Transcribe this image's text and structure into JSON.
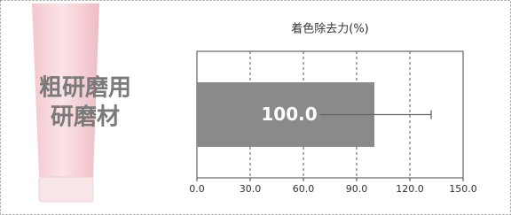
{
  "chart_data": {
    "type": "hbar",
    "title": "着色除去力(%)",
    "product_label": [
      "粗研磨用",
      "研磨材"
    ],
    "values": [
      100
    ],
    "value_labels": [
      "100.0"
    ],
    "errors": [
      32
    ],
    "color": "#8a8a8a",
    "xlim": [
      0,
      150
    ],
    "xticks": [
      {
        "value": 0,
        "label": "0.0"
      },
      {
        "value": 30,
        "label": "30.0"
      },
      {
        "value": 60,
        "label": "60.0"
      },
      {
        "value": 90,
        "label": "90.0"
      },
      {
        "value": 120,
        "label": "120.0"
      },
      {
        "value": 150,
        "label": "150.0"
      }
    ],
    "grid": true
  }
}
